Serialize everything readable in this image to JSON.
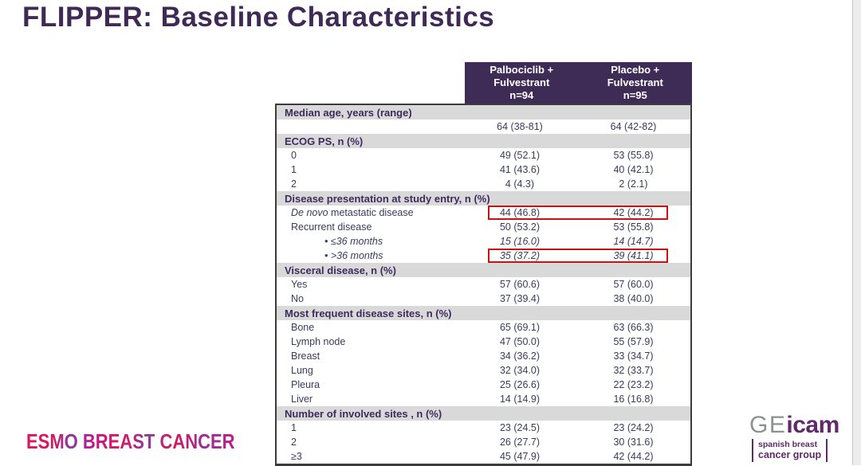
{
  "title": "FLIPPER: Baseline Characteristics",
  "table": {
    "columns": [
      {
        "label": "Palbociclib +\nFulvestrant\nn=94"
      },
      {
        "label": "Placebo +\nFulvestrant\nn=95"
      }
    ],
    "rows": [
      {
        "type": "section",
        "label": "Median age, years (range)"
      },
      {
        "type": "data",
        "label": "",
        "v1": "64 (38-81)",
        "v2": "64 (42-82)"
      },
      {
        "type": "section",
        "label": "ECOG PS, n (%)"
      },
      {
        "type": "data",
        "label": "0",
        "v1": "49 (52.1)",
        "v2": "53 (55.8)"
      },
      {
        "type": "data",
        "label": "1",
        "v1": "41 (43.6)",
        "v2": "40 (42.1)"
      },
      {
        "type": "data",
        "label": "2",
        "v1": "4 (4.3)",
        "v2": "2 (2.1)"
      },
      {
        "type": "section",
        "label": "Disease presentation at study entry, n (%)"
      },
      {
        "type": "data",
        "label_em": "De novo",
        "label": " metastatic disease",
        "v1": "44 (46.8)",
        "v2": "42 (44.2)",
        "highlight": true
      },
      {
        "type": "data",
        "label": "Recurrent disease",
        "v1": "50 (53.2)",
        "v2": "53 (55.8)"
      },
      {
        "type": "data",
        "label": "• ≤36 months",
        "v1": "15 (16.0)",
        "v2": "14 (14.7)",
        "italic": true,
        "indent": true
      },
      {
        "type": "data",
        "label": "• >36 months",
        "v1": "35 (37.2)",
        "v2": "39 (41.1)",
        "italic": true,
        "indent": true,
        "highlight": true
      },
      {
        "type": "section",
        "label": "Visceral disease, n (%)"
      },
      {
        "type": "data",
        "label": "Yes",
        "v1": "57 (60.6)",
        "v2": "57 (60.0)"
      },
      {
        "type": "data",
        "label": "No",
        "v1": "37 (39.4)",
        "v2": "38 (40.0)"
      },
      {
        "type": "section",
        "label": "Most frequent disease sites, n (%)"
      },
      {
        "type": "data",
        "label": "Bone",
        "v1": "65 (69.1)",
        "v2": "63 (66.3)"
      },
      {
        "type": "data",
        "label": "Lymph node",
        "v1": "47 (50.0)",
        "v2": "55 (57.9)"
      },
      {
        "type": "data",
        "label": "Breast",
        "v1": "34 (36.2)",
        "v2": "33 (34.7)"
      },
      {
        "type": "data",
        "label": "Lung",
        "v1": "32 (34.0)",
        "v2": "32 (33.7)"
      },
      {
        "type": "data",
        "label": "Pleura",
        "v1": "25 (26.6)",
        "v2": "22 (23.2)"
      },
      {
        "type": "data",
        "label": "Liver",
        "v1": "14 (14.9)",
        "v2": "16 (16.8)"
      },
      {
        "type": "section",
        "label": "Number of involved sites , n (%)"
      },
      {
        "type": "data",
        "label": "1",
        "v1": "23 (24.5)",
        "v2": "23 (24.2)"
      },
      {
        "type": "data",
        "label": "2",
        "v1": "26 (27.7)",
        "v2": "30 (31.6)"
      },
      {
        "type": "data",
        "label": "≥3",
        "v1": "45 (47.9)",
        "v2": "42 (44.2)"
      }
    ]
  },
  "footer": {
    "esmo_logo": "ESMO BREAST CANCER",
    "geicam": {
      "ge": "GE",
      "icam": "icam",
      "tag_line1": "spanish breast",
      "tag_line2": "cancer group"
    }
  },
  "colors": {
    "title_purple": "#3f2a56",
    "header_bg": "#3e2b56",
    "header_text": "#ffffff",
    "section_row_bg": "#d9d9d9",
    "section_text": "#3e2c5e",
    "body_text": "#3b3b5e",
    "table_border": "#3b3b3b",
    "highlight_red": "#c41414",
    "esmo_pink": "#d6185e",
    "esmo_purple": "#8b3a9e",
    "geicam_gray": "#8e9192",
    "geicam_purple": "#5f2a68"
  }
}
